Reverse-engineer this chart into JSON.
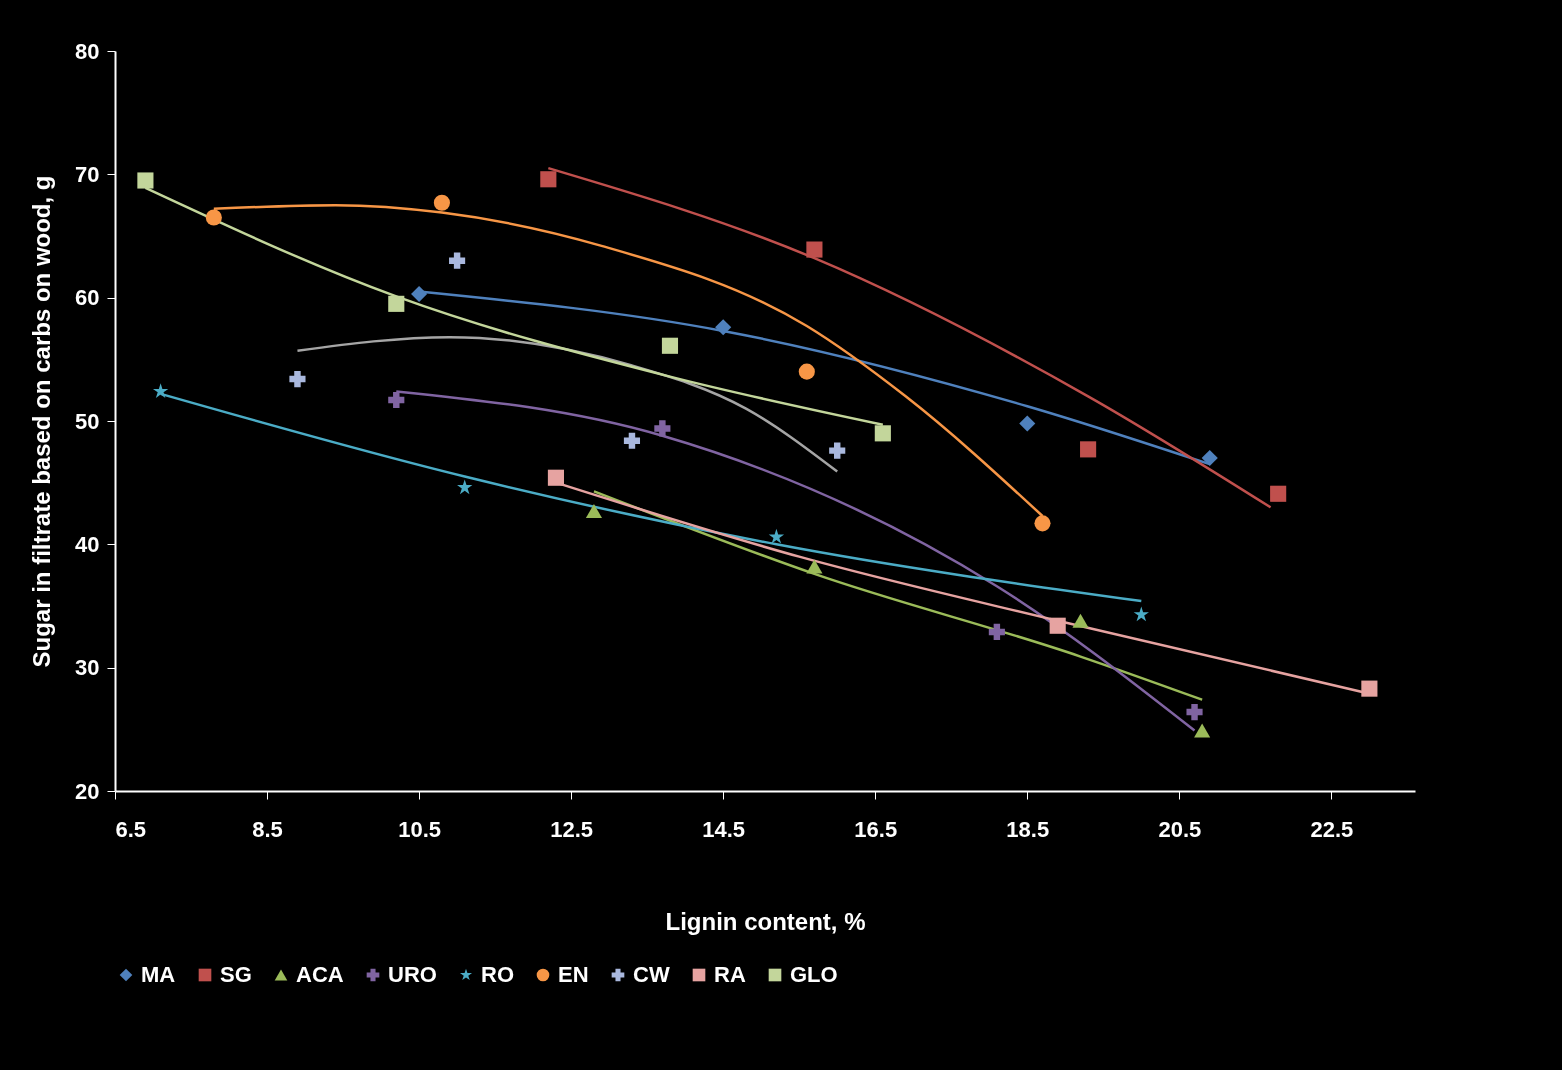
{
  "chart_data": {
    "type": "scatter",
    "xlabel": "Lignin content, %",
    "ylabel": "Sugar in filtrate based on carbs on wood, g",
    "xlim": [
      6.5,
      23.6
    ],
    "xticks": [
      6.5,
      8.5,
      10.5,
      12.5,
      14.5,
      16.5,
      18.5,
      20.5,
      22.5
    ],
    "ylim": [
      20,
      80
    ],
    "yticks": [
      20,
      30,
      40,
      50,
      60,
      70,
      80
    ],
    "grid": false,
    "legend": "bottom",
    "series": [
      {
        "name": "MA",
        "color": "#4f81bd",
        "marker": "diamond",
        "x": [
          10.5,
          14.5,
          18.5,
          20.9
        ],
        "values": [
          60.3,
          57.6,
          49.8,
          47.0
        ]
      },
      {
        "name": "SG",
        "color": "#c0504d",
        "marker": "square",
        "x": [
          12.2,
          15.7,
          19.3,
          21.8
        ],
        "values": [
          69.6,
          63.9,
          47.7,
          44.1
        ]
      },
      {
        "name": "ACA",
        "color": "#9bbb59",
        "marker": "triangle",
        "x": [
          12.8,
          15.7,
          19.2,
          20.8
        ],
        "values": [
          42.7,
          38.2,
          33.8,
          24.9
        ]
      },
      {
        "name": "URO",
        "color": "#8064a2",
        "marker": "cross",
        "x": [
          10.2,
          13.7,
          18.1,
          20.7
        ],
        "values": [
          51.7,
          49.4,
          32.9,
          26.4
        ]
      },
      {
        "name": "RO",
        "color": "#4bacc6",
        "marker": "star",
        "x": [
          7.1,
          11.1,
          15.2,
          20.0
        ],
        "values": [
          52.4,
          44.6,
          40.6,
          34.3
        ]
      },
      {
        "name": "EN",
        "color": "#f79646",
        "marker": "circle",
        "x": [
          7.8,
          10.8,
          15.6,
          18.7
        ],
        "values": [
          66.5,
          67.7,
          54.0,
          41.7
        ]
      },
      {
        "name": "CW",
        "color": "#a9b8de",
        "marker": "cross",
        "x": [
          8.9,
          11.0,
          13.3,
          16.0
        ],
        "values": [
          53.4,
          63.0,
          48.4,
          47.6
        ]
      },
      {
        "name": "RA",
        "color": "#e6a3a1",
        "marker": "square",
        "x": [
          12.3,
          18.9,
          23.0
        ],
        "values": [
          45.4,
          33.4,
          28.3
        ]
      },
      {
        "name": "GLO",
        "color": "#c3d69b",
        "marker": "square",
        "x": [
          6.9,
          10.2,
          13.8,
          16.6
        ],
        "values": [
          69.5,
          59.5,
          56.1,
          49.0
        ]
      },
      {
        "type": "line",
        "color": "#4f81bd",
        "x": [
          10.5,
          14.5,
          18.5,
          20.9
        ],
        "values": [
          60.5,
          57.3,
          51.2,
          46.5
        ]
      },
      {
        "type": "line",
        "color": "#c0504d",
        "x": [
          12.2,
          15.7,
          19.3,
          21.7
        ],
        "values": [
          70.5,
          63.2,
          52.0,
          43.0
        ]
      },
      {
        "type": "line",
        "color": "#9bbb59",
        "x": [
          12.8,
          15.7,
          19.2,
          20.8
        ],
        "values": [
          44.3,
          37.6,
          30.9,
          27.4
        ]
      },
      {
        "type": "line",
        "color": "#8064a2",
        "x": [
          10.2,
          13.7,
          18.1,
          20.7
        ],
        "values": [
          52.4,
          48.8,
          36.6,
          24.9
        ]
      },
      {
        "type": "line",
        "color": "#4bacc6",
        "x": [
          7.1,
          11.1,
          15.2,
          20.0
        ],
        "values": [
          52.2,
          45.5,
          40.0,
          35.4
        ]
      },
      {
        "type": "line",
        "color": "#f79646",
        "x": [
          7.8,
          9.4,
          10.8,
          12.9,
          15.6,
          16.9,
          18.7
        ],
        "values": [
          67.2,
          67.5,
          66.9,
          64.2,
          57.7,
          52.0,
          42.3
        ]
      },
      {
        "type": "line",
        "color": "#a5a5a5",
        "x": [
          8.9,
          10.9,
          13.3,
          14.8,
          16.0
        ],
        "values": [
          55.7,
          56.8,
          54.5,
          51.0,
          45.9
        ]
      },
      {
        "type": "line",
        "color": "#e6a3a1",
        "x": [
          12.3,
          15.5,
          18.9,
          23.0
        ],
        "values": [
          45.0,
          39.0,
          33.8,
          27.9
        ]
      },
      {
        "type": "line",
        "color": "#c3d69b",
        "x": [
          6.9,
          10.2,
          13.8,
          16.6
        ],
        "values": [
          68.9,
          60.1,
          53.6,
          49.7
        ]
      }
    ]
  }
}
